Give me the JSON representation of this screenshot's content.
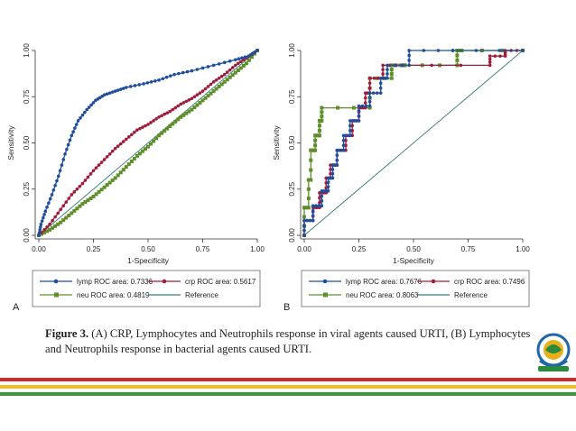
{
  "figure": {
    "caption_label": "Figure 3.",
    "caption_text": "(A) CRP, Lymphocytes and Neutrophils response in viral agents caused URTI, (B) Lymphocytes and Neutrophils response in bacterial agents caused URTI."
  },
  "colors": {
    "lymp": "#1f4e9c",
    "crp": "#a01c3c",
    "neu": "#5f8f2a",
    "reference": "#3a7a77",
    "stripe_red": "#d02a2a",
    "stripe_yellow": "#f0c020",
    "stripe_green": "#3b9a3b"
  },
  "chart_data": [
    {
      "panel": "A",
      "type": "line",
      "title": "",
      "xlabel": "1-Specificity",
      "ylabel": "Sensitivity",
      "xlim": [
        0,
        1
      ],
      "ylim": [
        0,
        1
      ],
      "x_ticks": [
        "0.00",
        "0.25",
        "0.50",
        "0.75",
        "1.00"
      ],
      "y_ticks": [
        "0.00",
        "0.25",
        "0.50",
        "0.75",
        "1.00"
      ],
      "series": [
        {
          "key": "lymp",
          "name": "lymp ROC area: 0.7336",
          "style": "smooth",
          "points": [
            [
              0,
              0
            ],
            [
              0.01,
              0.06
            ],
            [
              0.03,
              0.13
            ],
            [
              0.06,
              0.22
            ],
            [
              0.09,
              0.32
            ],
            [
              0.12,
              0.44
            ],
            [
              0.15,
              0.54
            ],
            [
              0.18,
              0.62
            ],
            [
              0.22,
              0.68
            ],
            [
              0.26,
              0.73
            ],
            [
              0.3,
              0.76
            ],
            [
              0.35,
              0.78
            ],
            [
              0.4,
              0.8
            ],
            [
              0.48,
              0.82
            ],
            [
              0.55,
              0.84
            ],
            [
              0.62,
              0.87
            ],
            [
              0.7,
              0.89
            ],
            [
              0.8,
              0.92
            ],
            [
              0.9,
              0.95
            ],
            [
              0.96,
              0.97
            ],
            [
              1,
              1
            ]
          ]
        },
        {
          "key": "crp",
          "name": "crp ROC area: 0.5617",
          "style": "smooth",
          "points": [
            [
              0,
              0
            ],
            [
              0.05,
              0.06
            ],
            [
              0.1,
              0.14
            ],
            [
              0.15,
              0.22
            ],
            [
              0.2,
              0.28
            ],
            [
              0.25,
              0.35
            ],
            [
              0.3,
              0.41
            ],
            [
              0.35,
              0.47
            ],
            [
              0.4,
              0.52
            ],
            [
              0.45,
              0.57
            ],
            [
              0.5,
              0.6
            ],
            [
              0.55,
              0.64
            ],
            [
              0.6,
              0.67
            ],
            [
              0.65,
              0.71
            ],
            [
              0.7,
              0.74
            ],
            [
              0.75,
              0.78
            ],
            [
              0.8,
              0.83
            ],
            [
              0.85,
              0.87
            ],
            [
              0.9,
              0.92
            ],
            [
              0.95,
              0.96
            ],
            [
              1,
              1
            ]
          ]
        },
        {
          "key": "neu",
          "name": "neu ROC area: 0.4819",
          "style": "smooth",
          "points": [
            [
              0,
              0
            ],
            [
              0.05,
              0.03
            ],
            [
              0.1,
              0.07
            ],
            [
              0.15,
              0.12
            ],
            [
              0.2,
              0.17
            ],
            [
              0.25,
              0.21
            ],
            [
              0.3,
              0.26
            ],
            [
              0.35,
              0.31
            ],
            [
              0.4,
              0.37
            ],
            [
              0.45,
              0.43
            ],
            [
              0.5,
              0.48
            ],
            [
              0.55,
              0.54
            ],
            [
              0.6,
              0.59
            ],
            [
              0.65,
              0.64
            ],
            [
              0.7,
              0.68
            ],
            [
              0.75,
              0.73
            ],
            [
              0.8,
              0.78
            ],
            [
              0.85,
              0.83
            ],
            [
              0.9,
              0.88
            ],
            [
              0.95,
              0.93
            ],
            [
              1,
              1
            ]
          ]
        },
        {
          "key": "reference",
          "name": "Reference",
          "style": "line",
          "points": [
            [
              0,
              0
            ],
            [
              1,
              1
            ]
          ]
        }
      ],
      "legend_position": "bottom"
    },
    {
      "panel": "B",
      "type": "line",
      "title": "",
      "xlabel": "1-Specificity",
      "ylabel": "Sensitivity",
      "xlim": [
        0,
        1
      ],
      "ylim": [
        0,
        1
      ],
      "x_ticks": [
        "0.00",
        "0.25",
        "0.50",
        "0.75",
        "1.00"
      ],
      "y_ticks": [
        "0.00",
        "0.25",
        "0.50",
        "0.75",
        "1.00"
      ],
      "series": [
        {
          "key": "lymp",
          "name": "lymp ROC area: 0.7676",
          "style": "step",
          "points": [
            [
              0,
              0
            ],
            [
              0.04,
              0.08
            ],
            [
              0.08,
              0.16
            ],
            [
              0.11,
              0.24
            ],
            [
              0.13,
              0.31
            ],
            [
              0.15,
              0.38
            ],
            [
              0.18,
              0.46
            ],
            [
              0.21,
              0.54
            ],
            [
              0.25,
              0.62
            ],
            [
              0.3,
              0.7
            ],
            [
              0.35,
              0.77
            ],
            [
              0.38,
              0.85
            ],
            [
              0.48,
              0.92
            ],
            [
              0.68,
              1.0
            ],
            [
              1,
              1
            ]
          ]
        },
        {
          "key": "crp",
          "name": "crp ROC area: 0.7496",
          "style": "step",
          "points": [
            [
              0,
              0
            ],
            [
              0.04,
              0.08
            ],
            [
              0.07,
              0.15
            ],
            [
              0.1,
              0.23
            ],
            [
              0.12,
              0.31
            ],
            [
              0.15,
              0.38
            ],
            [
              0.19,
              0.46
            ],
            [
              0.22,
              0.54
            ],
            [
              0.25,
              0.62
            ],
            [
              0.28,
              0.69
            ],
            [
              0.3,
              0.77
            ],
            [
              0.36,
              0.85
            ],
            [
              0.45,
              0.92
            ],
            [
              0.85,
              0.92
            ],
            [
              0.92,
              0.97
            ],
            [
              1,
              1
            ]
          ]
        },
        {
          "key": "neu",
          "name": "neu ROC area: 0.8063",
          "style": "step",
          "points": [
            [
              0,
              0
            ],
            [
              0.02,
              0.15
            ],
            [
              0.03,
              0.3
            ],
            [
              0.05,
              0.46
            ],
            [
              0.07,
              0.54
            ],
            [
              0.08,
              0.62
            ],
            [
              0.3,
              0.69
            ],
            [
              0.4,
              0.85
            ],
            [
              0.46,
              0.92
            ],
            [
              0.7,
              0.92
            ],
            [
              0.72,
              1.0
            ],
            [
              1,
              1
            ]
          ]
        },
        {
          "key": "reference",
          "name": "Reference",
          "style": "line",
          "points": [
            [
              0,
              0
            ],
            [
              1,
              1
            ]
          ]
        }
      ],
      "legend_position": "bottom"
    }
  ]
}
